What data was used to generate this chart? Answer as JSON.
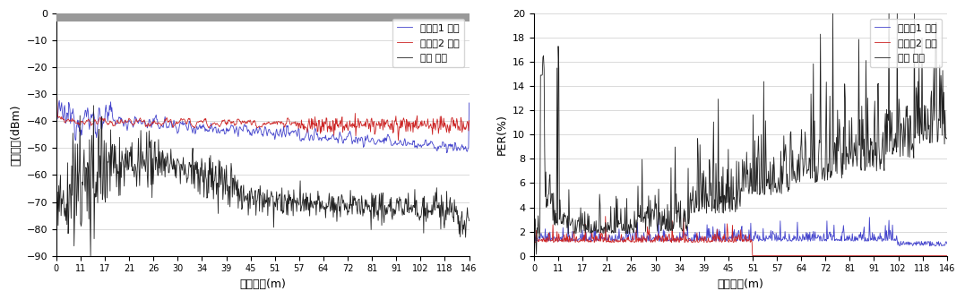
{
  "xlabel": "통신거리(m)",
  "left_ylabel": "수신세기(dBm)",
  "right_ylabel": "PER(%)",
  "xtick_labels": [
    "0",
    "11",
    "17",
    "21",
    "26",
    "30",
    "34",
    "39",
    "45",
    "51",
    "57",
    "64",
    "72",
    "81",
    "91",
    "102",
    "118",
    "146"
  ],
  "left_ylim": [
    -90,
    0
  ],
  "left_yticks": [
    0,
    -10,
    -20,
    -30,
    -40,
    -50,
    -60,
    -70,
    -80,
    -90
  ],
  "right_ylim": [
    0,
    20
  ],
  "right_yticks": [
    0,
    2,
    4,
    6,
    8,
    10,
    12,
    14,
    16,
    18,
    20
  ],
  "legend_entries": [
    "다이폴1 송신",
    "다이폴2 송신",
    "샤크 송신"
  ],
  "line_colors": [
    "#4444cc",
    "#cc2222",
    "#222222"
  ],
  "gray_bar_color": "#999999",
  "background_color": "#ffffff",
  "grid_color": "#cccccc"
}
